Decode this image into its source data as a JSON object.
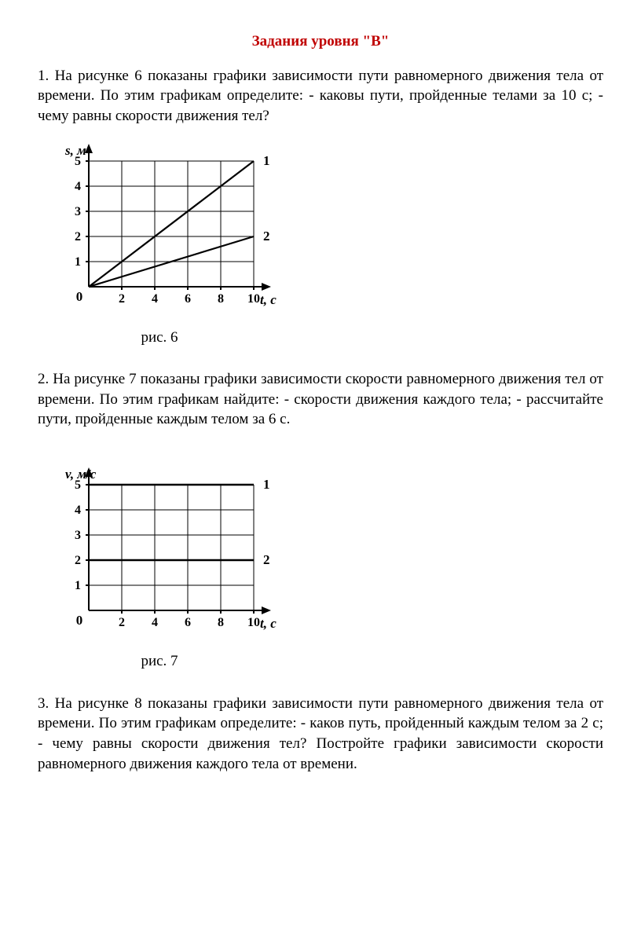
{
  "title": "Задания уровня \"В\"",
  "q1": "1. На рисунке 6 показаны графики зависимости пути равномерного движения тела от времени. По этим графикам определите: - каковы пути, пройденные телами за 10 с; - чему равны скорости движения тел?",
  "q2": "2. На рисунке 7 показаны графики зависимости скорости равномерного движения тел от времени. По этим графикам найдите: - скорости движения каждого тела; - рассчитайте пути, пройденные каждым телом за 6 с.",
  "q3": "3. На рисунке 8 показаны графики зависимости пути равномерного движения тела от времени. По этим графикам определите: - каков путь, пройденный каждым телом за 2 с; - чему равны скорости движения тел? Постройте   графики   зависимости   скорости  равномерного движения каждого тела от времени.",
  "chart1": {
    "type": "line",
    "caption": "рис. 6",
    "y_axis_label": "s, м",
    "x_axis_label": "t, c",
    "y_ticks": [
      1,
      2,
      3,
      4,
      5
    ],
    "x_ticks": [
      2,
      4,
      6,
      8,
      10
    ],
    "xlim": [
      0,
      10
    ],
    "ylim": [
      0,
      5
    ],
    "origin_label": "0",
    "grid_color": "#000000",
    "grid_width": 1,
    "axis_color": "#000000",
    "axis_width": 2,
    "line_color": "#000000",
    "line_width": 2.2,
    "background": "#ffffff",
    "tick_font_size": 16,
    "axis_label_font_size": 17,
    "axis_label_font_style": "italic bold",
    "series_label_font_size": 17,
    "series": [
      {
        "label": "1",
        "points": [
          [
            0,
            0
          ],
          [
            10,
            5
          ]
        ]
      },
      {
        "label": "2",
        "points": [
          [
            0,
            0
          ],
          [
            10,
            2
          ]
        ]
      }
    ]
  },
  "chart2": {
    "type": "line",
    "caption": "рис. 7",
    "y_axis_label": "v, м/с",
    "x_axis_label": "t, c",
    "y_ticks": [
      1,
      2,
      3,
      4,
      5
    ],
    "x_ticks": [
      2,
      4,
      6,
      8,
      10
    ],
    "xlim": [
      0,
      10
    ],
    "ylim": [
      0,
      5
    ],
    "origin_label": "0",
    "grid_color": "#000000",
    "grid_width": 1,
    "axis_color": "#000000",
    "axis_width": 2,
    "line_color": "#000000",
    "line_width": 2.5,
    "background": "#ffffff",
    "tick_font_size": 16,
    "axis_label_font_size": 17,
    "axis_label_font_style": "italic bold",
    "series_label_font_size": 17,
    "series": [
      {
        "label": "1",
        "points": [
          [
            0,
            5
          ],
          [
            10,
            5
          ]
        ]
      },
      {
        "label": "2",
        "points": [
          [
            0,
            2
          ],
          [
            10,
            2
          ]
        ]
      }
    ]
  }
}
